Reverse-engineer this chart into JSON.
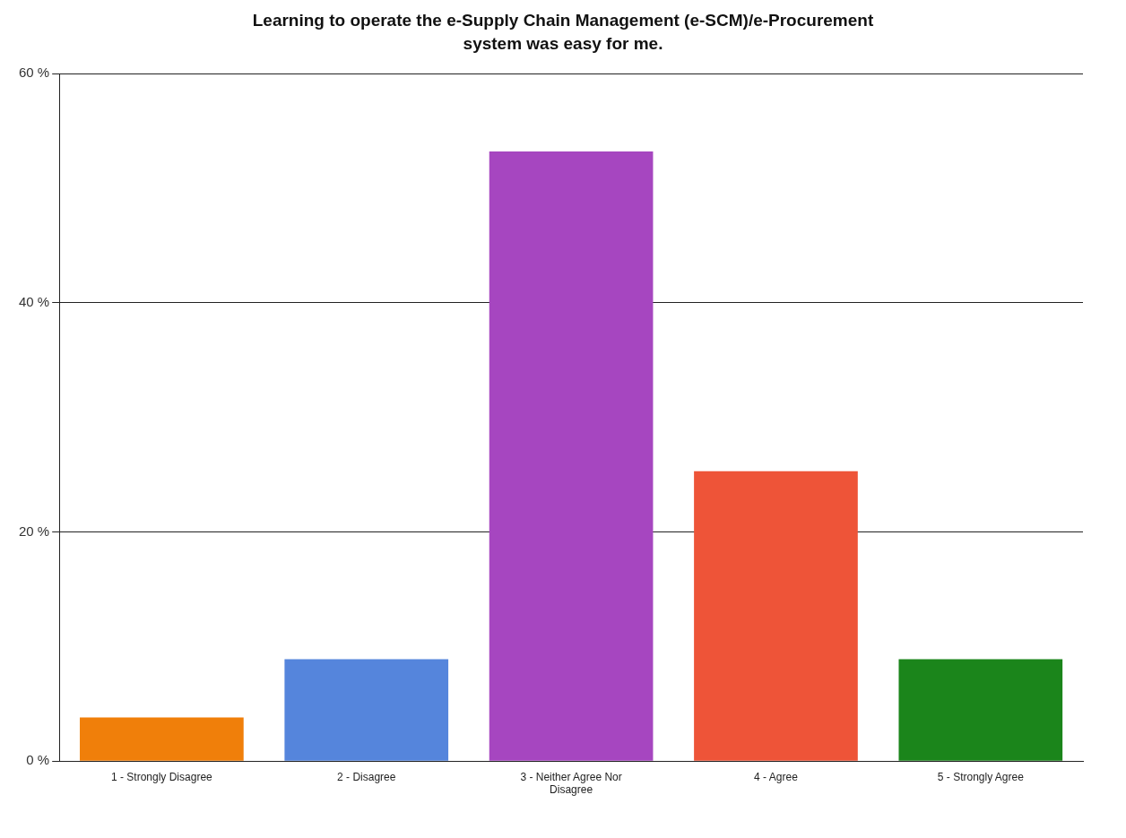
{
  "chart_data": {
    "type": "bar",
    "title": "Learning to operate the e-Supply Chain Management (e-SCM)/e-Procurement system was easy for me.",
    "categories": [
      "1 - Strongly Disagree",
      "2 - Disagree",
      "3 - Neither Agree Nor Disagree",
      "4 - Agree",
      "5 - Strongly Agree"
    ],
    "values": [
      3.8,
      8.9,
      53.2,
      25.3,
      8.9
    ],
    "colors": [
      "#f07f0a",
      "#5585dc",
      "#a646c0",
      "#ee5438",
      "#1b851b"
    ],
    "ylim": [
      0,
      60
    ],
    "yticks": [
      {
        "value": 0,
        "label": "0 %"
      },
      {
        "value": 20,
        "label": "20 %"
      },
      {
        "value": 40,
        "label": "40 %"
      },
      {
        "value": 60,
        "label": "60 %"
      }
    ],
    "grid": "y",
    "legend": false
  }
}
